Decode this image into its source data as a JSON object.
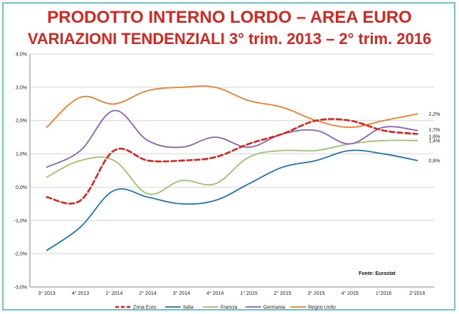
{
  "chart_data": {
    "type": "line",
    "title": "PRODOTTO INTERNO LORDO – AREA EURO",
    "subtitle": "VARIAZIONI TENDENZIALI 3° trim. 2013 – 2° trim. 2016",
    "xlabel": "",
    "ylabel": "",
    "categories": [
      "3° 2013",
      "4° 2013",
      "1° 2014",
      "2° 2014",
      "3° 2014",
      "4° 2014",
      "1° 2015",
      "2° 2015",
      "3° 2015",
      "4° 2015",
      "1°2016",
      "2°2016"
    ],
    "ylim": [
      -3.0,
      4.0
    ],
    "yticks": [
      "4,0%",
      "3,0%",
      "2,0%",
      "1,0%",
      "0,0%",
      "-1,0%",
      "-2,0%",
      "-3,0%"
    ],
    "grid": true,
    "legend_position": "bottom",
    "source": "Fonte: Eurostat",
    "series": [
      {
        "name": "Zona Euro",
        "color": "#e0201b",
        "dashed": true,
        "values": [
          -0.3,
          -0.4,
          1.1,
          0.8,
          0.8,
          0.9,
          1.3,
          1.6,
          2.0,
          2.0,
          1.7,
          1.6
        ],
        "end_label": "1,6%"
      },
      {
        "name": "Italia",
        "color": "#1e72b8",
        "dashed": false,
        "values": [
          -1.9,
          -1.2,
          -0.1,
          -0.3,
          -0.5,
          -0.4,
          0.1,
          0.6,
          0.8,
          1.1,
          1.0,
          0.8
        ],
        "end_label": "0,8%"
      },
      {
        "name": "Francia",
        "color": "#9ac36a",
        "dashed": false,
        "values": [
          0.3,
          0.8,
          0.8,
          -0.2,
          0.2,
          0.1,
          0.9,
          1.1,
          1.1,
          1.3,
          1.4,
          1.4
        ],
        "end_label": "1,4%"
      },
      {
        "name": "Germania",
        "color": "#8b62b2",
        "dashed": false,
        "values": [
          0.6,
          1.1,
          2.3,
          1.4,
          1.2,
          1.5,
          1.2,
          1.6,
          1.7,
          1.3,
          1.8,
          1.7
        ],
        "end_label": "1,7%"
      },
      {
        "name": "Regno Unito",
        "color": "#ee7d2b",
        "dashed": false,
        "values": [
          1.8,
          2.7,
          2.5,
          2.9,
          3.0,
          3.0,
          2.6,
          2.4,
          2.0,
          1.8,
          2.0,
          2.2
        ],
        "end_label": "2,2%"
      }
    ]
  }
}
